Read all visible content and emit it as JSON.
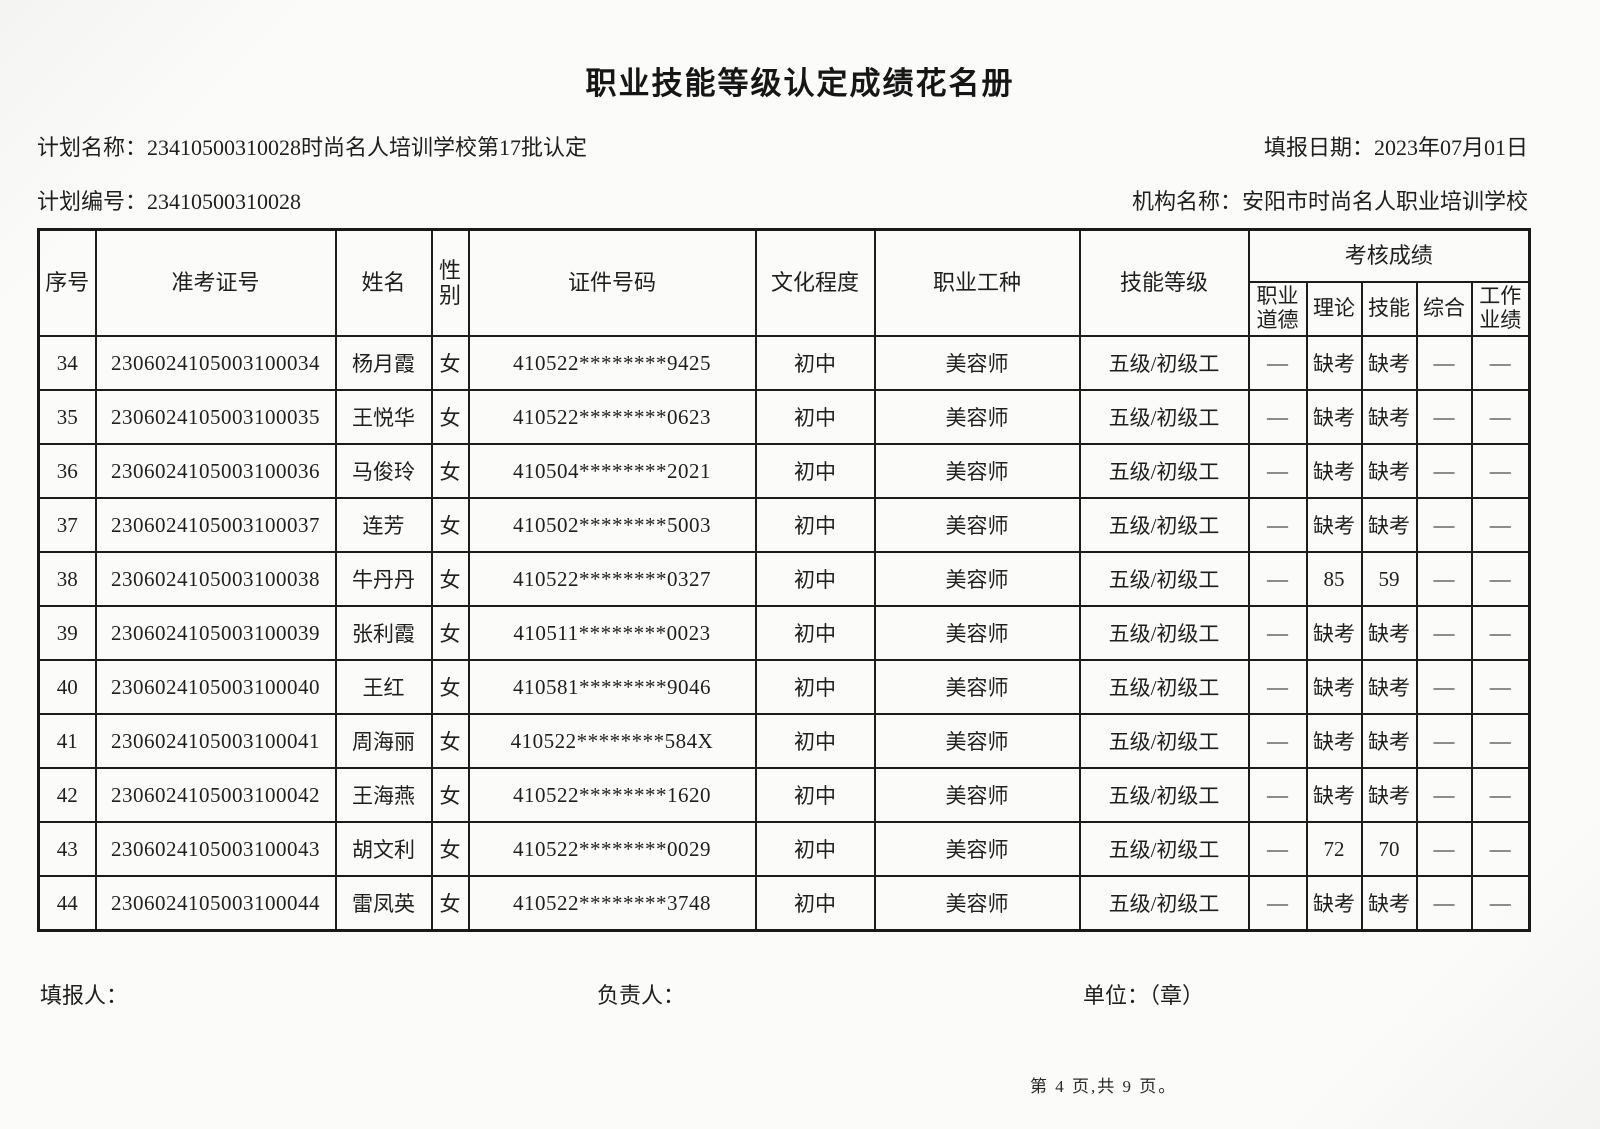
{
  "title": "职业技能等级认定成绩花名册",
  "meta": {
    "plan_name_label": "计划名称：",
    "plan_name": "23410500310028时尚名人培训学校第17批认定",
    "report_date_label": "填报日期：",
    "report_date": "2023年07月01日",
    "plan_no_label": "计划编号：",
    "plan_no": "23410500310028",
    "org_label": "机构名称：",
    "org_name": "安阳市时尚名人职业培训学校"
  },
  "table": {
    "headers": {
      "main": [
        "序号",
        "准考证号",
        "姓名",
        "性别",
        "证件号码",
        "文化程度",
        "职业工种",
        "技能等级"
      ],
      "score_group": "考核成绩",
      "score_cols": [
        "职业道德",
        "理论",
        "技能",
        "综合",
        "工作业绩"
      ]
    },
    "col_keys": [
      "seq",
      "examno",
      "name",
      "gender",
      "idno",
      "education",
      "occupation",
      "skill-level",
      "ethics",
      "theory",
      "skill",
      "comprehensive",
      "work-performance"
    ],
    "rows": [
      [
        "34",
        "2306024105003100034",
        "杨月霞",
        "女",
        "410522********9425",
        "初中",
        "美容师",
        "五级/初级工",
        "—",
        "缺考",
        "缺考",
        "—",
        "—"
      ],
      [
        "35",
        "2306024105003100035",
        "王悦华",
        "女",
        "410522********0623",
        "初中",
        "美容师",
        "五级/初级工",
        "—",
        "缺考",
        "缺考",
        "—",
        "—"
      ],
      [
        "36",
        "2306024105003100036",
        "马俊玲",
        "女",
        "410504********2021",
        "初中",
        "美容师",
        "五级/初级工",
        "—",
        "缺考",
        "缺考",
        "—",
        "—"
      ],
      [
        "37",
        "2306024105003100037",
        "连芳",
        "女",
        "410502********5003",
        "初中",
        "美容师",
        "五级/初级工",
        "—",
        "缺考",
        "缺考",
        "—",
        "—"
      ],
      [
        "38",
        "2306024105003100038",
        "牛丹丹",
        "女",
        "410522********0327",
        "初中",
        "美容师",
        "五级/初级工",
        "—",
        "85",
        "59",
        "—",
        "—"
      ],
      [
        "39",
        "2306024105003100039",
        "张利霞",
        "女",
        "410511********0023",
        "初中",
        "美容师",
        "五级/初级工",
        "—",
        "缺考",
        "缺考",
        "—",
        "—"
      ],
      [
        "40",
        "2306024105003100040",
        "王红",
        "女",
        "410581********9046",
        "初中",
        "美容师",
        "五级/初级工",
        "—",
        "缺考",
        "缺考",
        "—",
        "—"
      ],
      [
        "41",
        "2306024105003100041",
        "周海丽",
        "女",
        "410522********584X",
        "初中",
        "美容师",
        "五级/初级工",
        "—",
        "缺考",
        "缺考",
        "—",
        "—"
      ],
      [
        "42",
        "2306024105003100042",
        "王海燕",
        "女",
        "410522********1620",
        "初中",
        "美容师",
        "五级/初级工",
        "—",
        "缺考",
        "缺考",
        "—",
        "—"
      ],
      [
        "43",
        "2306024105003100043",
        "胡文利",
        "女",
        "410522********0029",
        "初中",
        "美容师",
        "五级/初级工",
        "—",
        "72",
        "70",
        "—",
        "—"
      ],
      [
        "44",
        "2306024105003100044",
        "雷凤英",
        "女",
        "410522********3748",
        "初中",
        "美容师",
        "五级/初级工",
        "—",
        "缺考",
        "缺考",
        "—",
        "—"
      ]
    ]
  },
  "footer": {
    "filler_label": "填报人：",
    "manager_label": "负责人：",
    "unit_label": "单位：（章）",
    "page_info": "第 4 页,共 9 页。"
  },
  "colors": {
    "border": "#1d1d1d",
    "text": "#1f1f1f",
    "background": "#fafaf8"
  }
}
